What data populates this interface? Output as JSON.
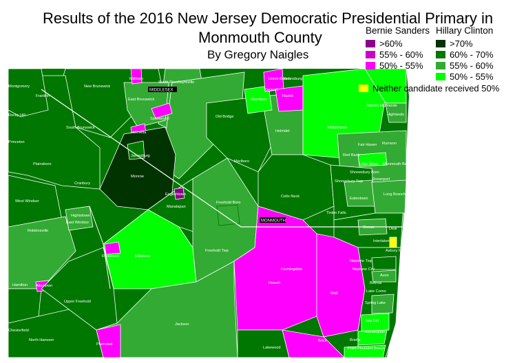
{
  "title": {
    "line1": "Results of the 2016 New Jersey Democratic Presidential Primary in",
    "line2": "Monmouth County",
    "byline": "By Gregory Naigles"
  },
  "legend": {
    "sanders_heading": "Bernie Sanders",
    "clinton_heading": "Hillary Clinton",
    "sanders": [
      {
        "label": ">60%",
        "color": "#8B008B"
      },
      {
        "label": "55% - 60%",
        "color": "#CC00CC"
      },
      {
        "label": "50% - 55%",
        "color": "#FF00FF"
      }
    ],
    "clinton": [
      {
        "label": ">70%",
        "color": "#003300"
      },
      {
        "label": "60% - 70%",
        "color": "#007700"
      },
      {
        "label": "55% - 60%",
        "color": "#33AA33"
      },
      {
        "label": "50% - 55%",
        "color": "#00FF00"
      }
    ],
    "neither": {
      "label": "Neither candidate received 50%",
      "color": "#FFFF00"
    }
  },
  "county_labels": {
    "middlesex": "MIDDLESEX",
    "monmouth": "MONMOUTH"
  },
  "places": [
    "Helmetta",
    "New Brunswick",
    "Milltown",
    "South River",
    "Sayreville",
    "Union Beach",
    "Keansburg",
    "Montgomery",
    "Franklin",
    "East Brunswick",
    "Old Bridge",
    "Keyport",
    "Hazlet",
    "Aberdeen",
    "Atlantic Highlands",
    "Highlands",
    "Rocky Hill",
    "South Brunswick",
    "Spotswood",
    "Holmdel",
    "Middletown",
    "Princeton",
    "Jamesburg",
    "Marlboro",
    "Fair Haven",
    "Rumson",
    "Plainsboro",
    "Red Bank",
    "Little Silver",
    "Monmouth Beach",
    "Shrewsbury Boro",
    "Shrewsbury Twp",
    "Oceanport",
    "Cranbury",
    "Monroe",
    "Englishtown",
    "Manalapan",
    "Colts Neck",
    "Eatontown",
    "Long Branch",
    "West Windsor",
    "Freehold Boro",
    "Tinton Falls",
    "Hightstown",
    "East Windsor",
    "Ocean",
    "Deal",
    "Interlaken",
    "Asbury Park",
    "Robbinsville",
    "Roosevelt",
    "Millstone",
    "Freehold Twp",
    "Neptune Twp",
    "Farmingdale",
    "Neptune City",
    "Avon",
    "Hamilton",
    "Allentown",
    "Howell",
    "Belmar",
    "Lake Como",
    "Wall",
    "Spring Lake",
    "Upper Freehold",
    "Sea Girt",
    "Jackson",
    "Manasquan",
    "Chesterfield",
    "North Hanover",
    "Brielle",
    "Plumsted",
    "Lakewood",
    "Brick",
    "Point Pleasant Beach"
  ]
}
